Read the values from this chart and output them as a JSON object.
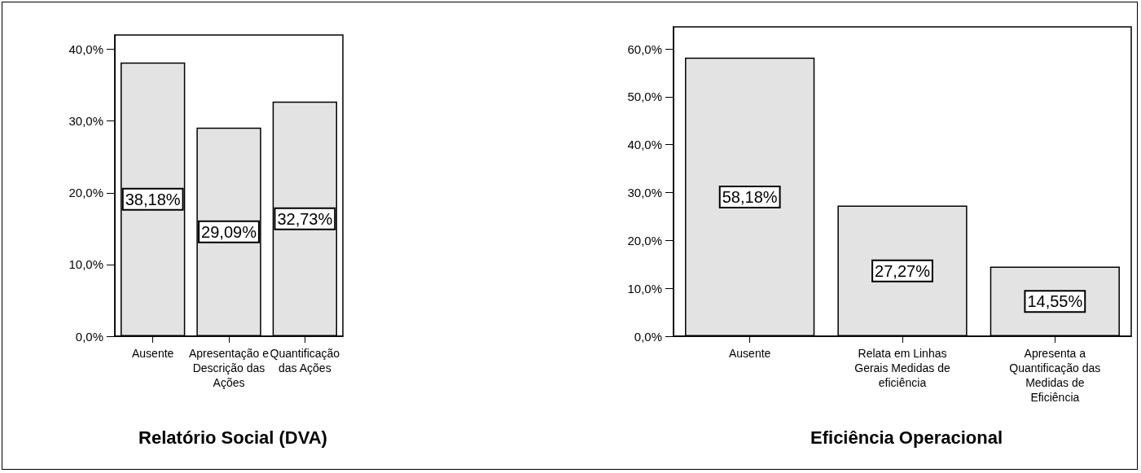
{
  "chart_data": [
    {
      "type": "bar",
      "title": "Relatório Social (DVA)",
      "categories": [
        "Ausente",
        "Apresentação e Descrição das Ações",
        "Quantificação das Ações"
      ],
      "values": [
        38.18,
        29.09,
        32.73
      ],
      "value_labels": [
        "38,18%",
        "29,09%",
        "32,73%"
      ],
      "color": "#e3e3e3",
      "ylim": [
        0,
        42
      ],
      "yticks": [
        {
          "value": 0,
          "label": "0,0%"
        },
        {
          "value": 10,
          "label": "10,0%"
        },
        {
          "value": 20,
          "label": "20,0%"
        },
        {
          "value": 30,
          "label": "30,0%"
        },
        {
          "value": 40,
          "label": "40,0%"
        }
      ],
      "grid": false
    },
    {
      "type": "bar",
      "title": "Eficiência Operacional",
      "categories": [
        "Ausente",
        "Relata em Linhas Gerais Medidas de eficiência",
        "Apresenta a Quantificação das Medidas de Eficiência"
      ],
      "values": [
        58.18,
        27.27,
        14.55
      ],
      "value_labels": [
        "58,18%",
        "27,27%",
        "14,55%"
      ],
      "color": "#e3e3e3",
      "ylim": [
        0,
        64.6
      ],
      "yticks": [
        {
          "value": 0,
          "label": "0,0%"
        },
        {
          "value": 10,
          "label": "10,0%"
        },
        {
          "value": 20,
          "label": "20,0%"
        },
        {
          "value": 30,
          "label": "30,0%"
        },
        {
          "value": 40,
          "label": "40,0%"
        },
        {
          "value": 50,
          "label": "50,0%"
        },
        {
          "value": 60,
          "label": "60,0%"
        }
      ],
      "grid": false
    }
  ]
}
